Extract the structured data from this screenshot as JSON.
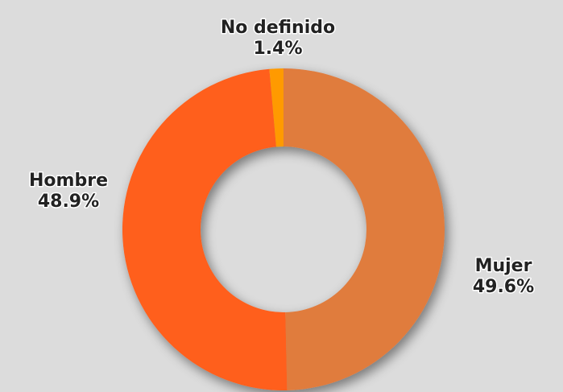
{
  "chart_data": {
    "type": "pie",
    "donut": true,
    "categories": [
      "Mujer",
      "Hombre",
      "No definido"
    ],
    "values": [
      49.6,
      48.9,
      1.4
    ],
    "value_labels": [
      "49.6%",
      "48.9%",
      "1.4%"
    ],
    "colors": [
      "#e07b3e",
      "#ff5e1a",
      "#ff9a00"
    ]
  }
}
